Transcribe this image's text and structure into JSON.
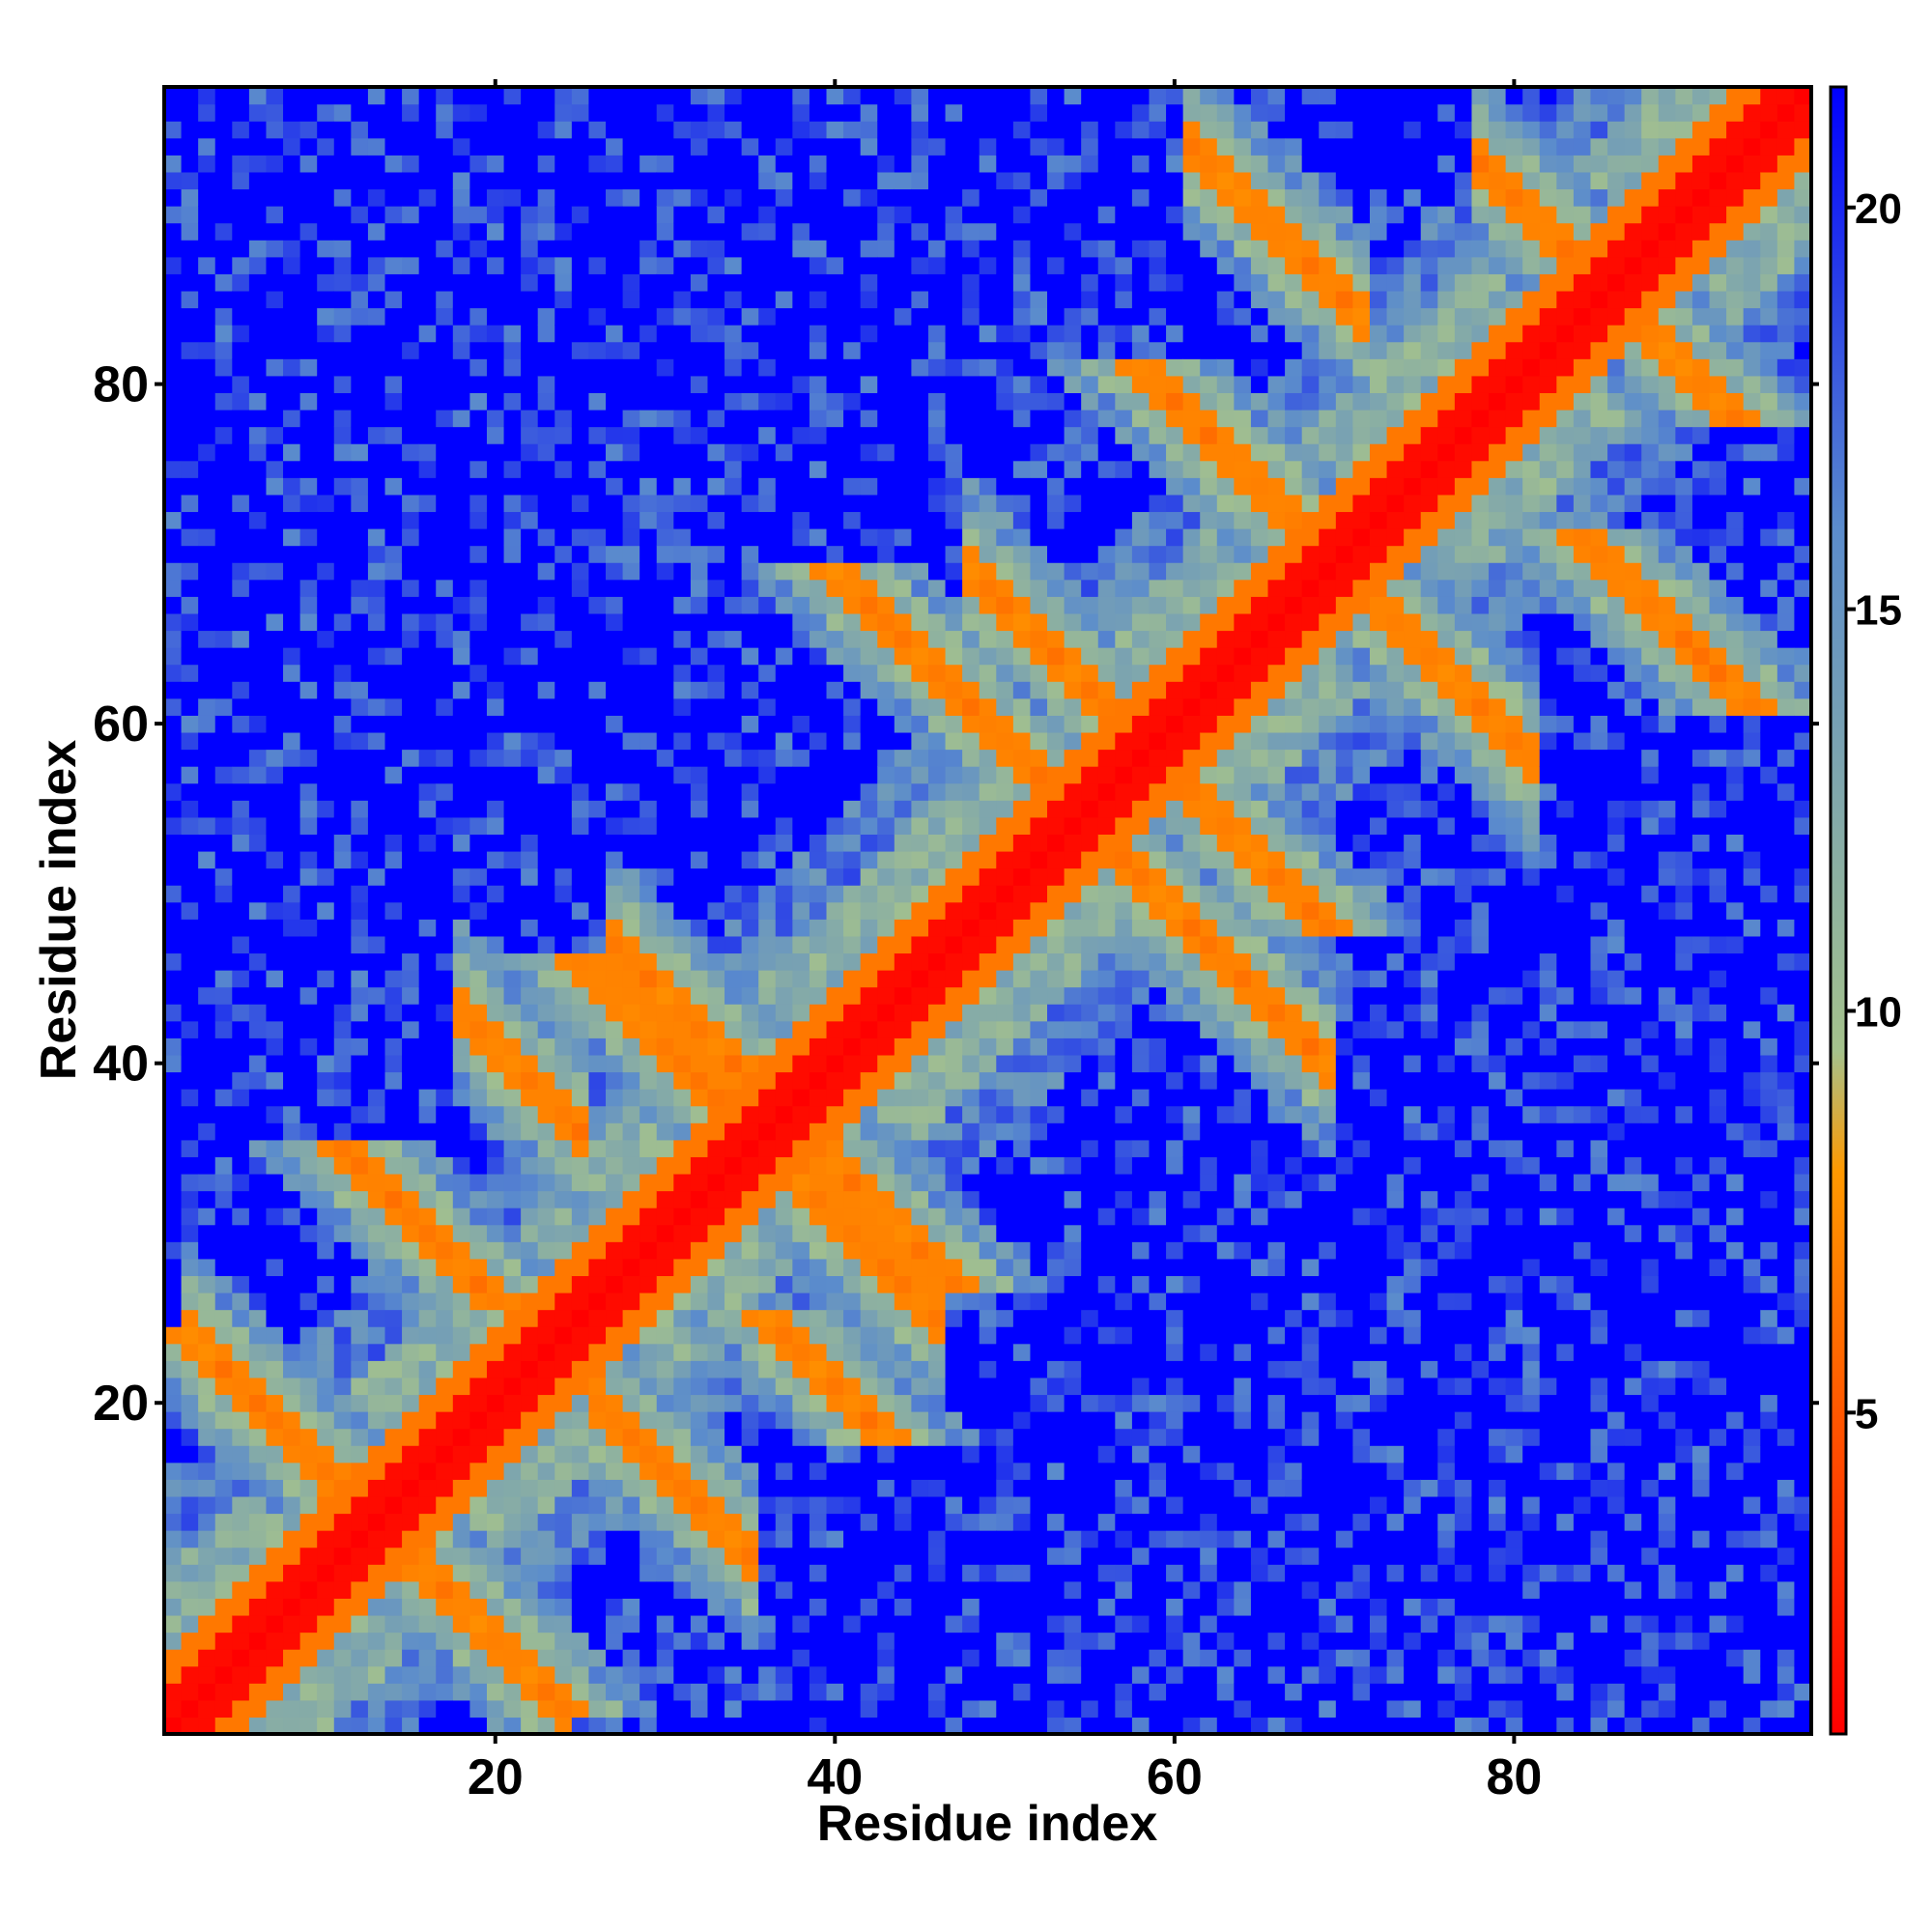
{
  "chart_data": {
    "type": "heatmap",
    "title": "",
    "xlabel": "Residue index",
    "ylabel": "Residue index",
    "n_residues": 97,
    "xlim": [
      1,
      97
    ],
    "ylim": [
      1,
      97
    ],
    "x_ticks": [
      20,
      40,
      60,
      80
    ],
    "y_ticks": [
      20,
      40,
      60,
      80
    ],
    "colorbar": {
      "ticks": [
        5,
        10,
        15,
        20
      ],
      "range": [
        1,
        21.5
      ],
      "colors": [
        "#ff0000",
        "#ff9900",
        "#a5c28c",
        "#5b8ccc",
        "#0000ff"
      ],
      "stops": [
        1,
        8,
        9.5,
        16,
        21.5
      ]
    },
    "features": {
      "main_diagonal": {
        "description": "i == j",
        "value": 1
      },
      "helix_band": {
        "offset": 4,
        "value": 6.5
      },
      "antiparallel_segments": [
        {
          "i_range": [
            2,
            12
          ],
          "j_sum": 26,
          "value": 6.5
        },
        {
          "i_range": [
            12,
            24
          ],
          "j_sum": 26,
          "value": 6.5
        },
        {
          "i_range": [
            18,
            25
          ],
          "j_sum": 61,
          "value": 6.5
        },
        {
          "i_range": [
            26,
            35
          ],
          "j_sum": 46,
          "value": 6.5
        },
        {
          "i_range": [
            27,
            37
          ],
          "j_sum": 74,
          "value": 6.5
        },
        {
          "i_range": [
            35,
            46
          ],
          "j_sum": 71,
          "value": 6.5
        },
        {
          "i_range": [
            48,
            56
          ],
          "j_sum": 117,
          "value": 6.5
        },
        {
          "i_range": [
            57,
            69
          ],
          "j_sum": 109,
          "value": 6.5
        },
        {
          "i_range": [
            61,
            71
          ],
          "j_sum": 155,
          "value": 6.5
        },
        {
          "i_range": [
            70,
            81
          ],
          "j_sum": 139,
          "value": 6.5
        },
        {
          "i_range": [
            78,
            86
          ],
          "j_sum": 171,
          "value": 6.5
        }
      ],
      "background_value": 21.5
    }
  }
}
